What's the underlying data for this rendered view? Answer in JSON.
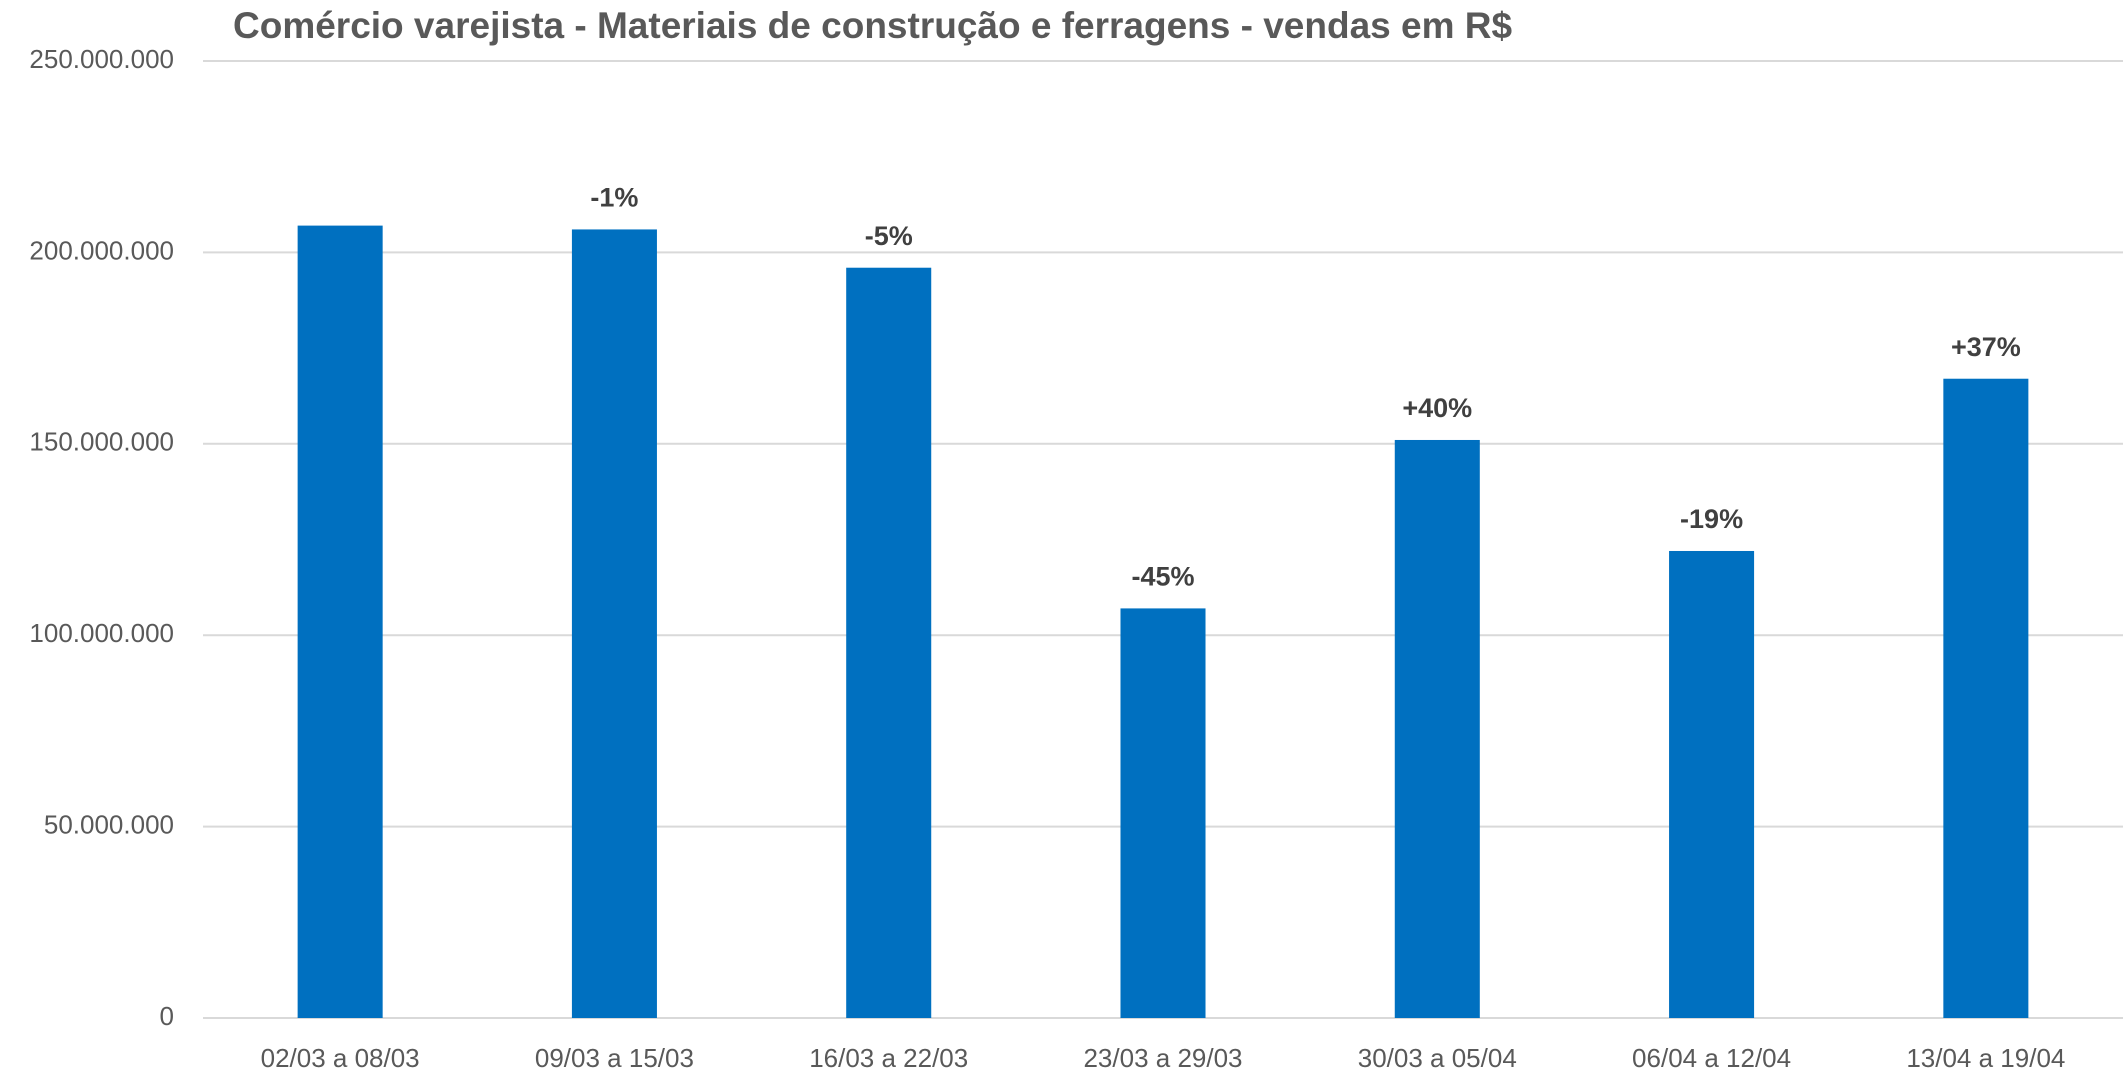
{
  "chart_data": {
    "type": "bar",
    "title": "Comércio varejista - Materiais de construção e ferragens - vendas em R$",
    "categories": [
      "02/03 a 08/03",
      "09/03 a 15/03",
      "16/03 a 22/03",
      "23/03 a 29/03",
      "30/03 a 05/04",
      "06/04 a 12/04",
      "13/04 a 19/04"
    ],
    "values": [
      207000000,
      206000000,
      196000000,
      107000000,
      151000000,
      122000000,
      167000000
    ],
    "annotations": [
      null,
      "-1%",
      "-5%",
      "-45%",
      "+40%",
      "-19%",
      "+37%"
    ],
    "color": "#0070c0",
    "ylim": [
      0,
      250000000
    ],
    "yticks": [
      0,
      {
        "value": 50000000,
        "label": "50.000.000"
      },
      {
        "value": 100000000,
        "label": "100.000.000"
      },
      {
        "value": 150000000,
        "label": "150.000.000"
      },
      {
        "value": 200000000,
        "label": "200.000.000"
      },
      {
        "value": 250000000,
        "label": "250.000.000"
      }
    ],
    "grid": true
  }
}
